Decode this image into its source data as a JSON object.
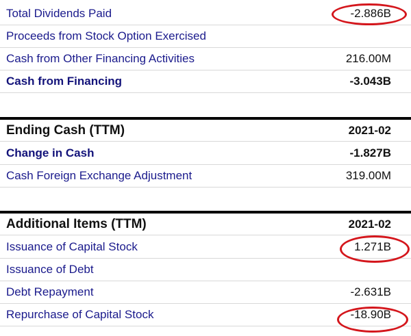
{
  "financing": {
    "rows": [
      {
        "label": "Total Dividends Paid",
        "value": "-2.886B"
      },
      {
        "label": "Proceeds from Stock Option Exercised",
        "value": ""
      },
      {
        "label": "Cash from Other Financing Activities",
        "value": "216.00M"
      },
      {
        "label": "Cash from Financing",
        "value": "-3.043B"
      }
    ]
  },
  "ending_cash": {
    "title": "Ending Cash (TTM)",
    "period": "2021-02",
    "rows": [
      {
        "label": "Change in Cash",
        "value": "-1.827B"
      },
      {
        "label": "Cash Foreign Exchange Adjustment",
        "value": "319.00M"
      }
    ]
  },
  "additional_items": {
    "title": "Additional Items (TTM)",
    "period": "2021-02",
    "rows": [
      {
        "label": "Issuance of Capital Stock",
        "value": "1.271B"
      },
      {
        "label": "Issuance of Debt",
        "value": ""
      },
      {
        "label": "Debt Repayment",
        "value": "-2.631B"
      },
      {
        "label": "Repurchase of Capital Stock",
        "value": "-18.90B"
      }
    ]
  },
  "annotation_color": "#d4161c"
}
